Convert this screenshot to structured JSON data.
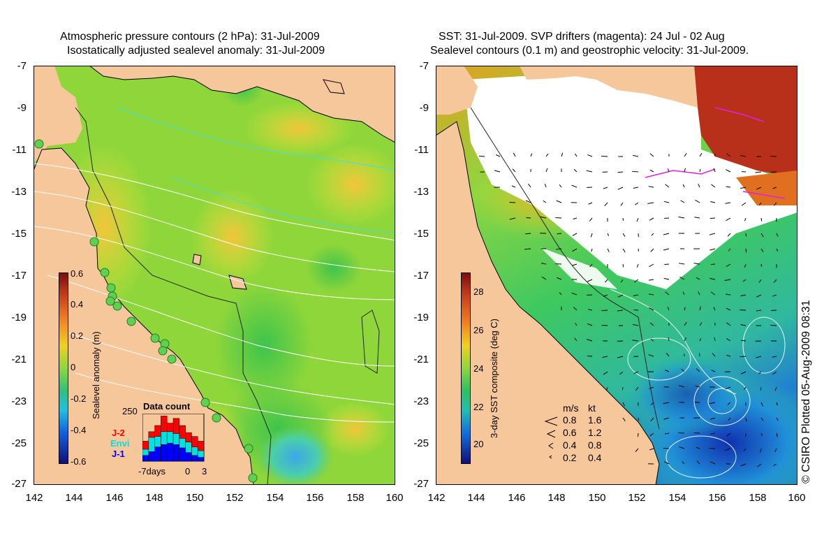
{
  "left_panel": {
    "title_line1": "Atmospheric pressure contours (2 hPa): 31-Jul-2009",
    "title_line2": "Isostatically adjusted sealevel anomaly: 31-Jul-2009",
    "colorbar": {
      "label": "Sealevel anomaly (m)",
      "ticks": [
        "0.6",
        "0.4",
        "0.2",
        "0",
        "-0.2",
        "-0.4",
        "-0.6"
      ]
    },
    "data_count": {
      "title": "Data count",
      "max_label": "250",
      "series_labels": [
        {
          "text": "J-2",
          "color": "#ff0000"
        },
        {
          "text": "Envi",
          "color": "#00e0e0"
        },
        {
          "text": "J-1",
          "color": "#0000ff"
        }
      ],
      "x_labels": [
        "-7days",
        "0",
        "3"
      ],
      "bars": [
        {
          "j2": 0.42,
          "envi": 0.25,
          "j1": 0.12
        },
        {
          "j2": 0.62,
          "envi": 0.5,
          "j1": 0.2
        },
        {
          "j2": 0.75,
          "envi": 0.52,
          "j1": 0.3
        },
        {
          "j2": 0.95,
          "envi": 0.62,
          "j1": 0.35
        },
        {
          "j2": 0.8,
          "envi": 0.62,
          "j1": 0.38
        },
        {
          "j2": 0.9,
          "envi": 0.58,
          "j1": 0.35
        },
        {
          "j2": 0.75,
          "envi": 0.48,
          "j1": 0.28
        },
        {
          "j2": 0.6,
          "envi": 0.4,
          "j1": 0.18
        },
        {
          "j2": 0.52,
          "envi": 0.3,
          "j1": 0.12
        },
        {
          "j2": 0.42,
          "envi": 0.22,
          "j1": 0.08
        }
      ]
    }
  },
  "right_panel": {
    "title_line1": "SST: 31-Jul-2009. SVP drifters (magenta): 24 Jul - 02 Aug",
    "title_line2": "Sealevel contours (0.1 m) and geostrophic velocity: 31-Jul-2009.",
    "colorbar": {
      "label": "3-day SST composite (deg C)",
      "ticks": [
        "28",
        "26",
        "24",
        "22",
        "20"
      ]
    },
    "velocity_legend": {
      "header_ms": "m/s",
      "header_kt": "kt",
      "rows": [
        {
          "ms": "0.8",
          "kt": "1.6"
        },
        {
          "ms": "0.6",
          "kt": "1.2"
        },
        {
          "ms": "0.4",
          "kt": "0.8"
        },
        {
          "ms": "0.2",
          "kt": "0.4"
        }
      ]
    }
  },
  "axes": {
    "lat_ticks": [
      "-7",
      "-9",
      "-11",
      "-13",
      "-15",
      "-17",
      "-19",
      "-21",
      "-23",
      "-25",
      "-27"
    ],
    "lon_ticks": [
      "142",
      "144",
      "146",
      "148",
      "150",
      "152",
      "154",
      "156",
      "158",
      "160"
    ]
  },
  "copyright": "© CSIRO Plotted 05-Aug-2009 08:31",
  "colors": {
    "land": "#f7c79c",
    "anomaly_base": "#8fd63a",
    "anomaly_high": "#f0dc28",
    "anomaly_low": "#3fc8b4",
    "sst_warm": "#b02a10",
    "sst_mid": "#4ccf40",
    "sst_cool": "#1040c0"
  }
}
